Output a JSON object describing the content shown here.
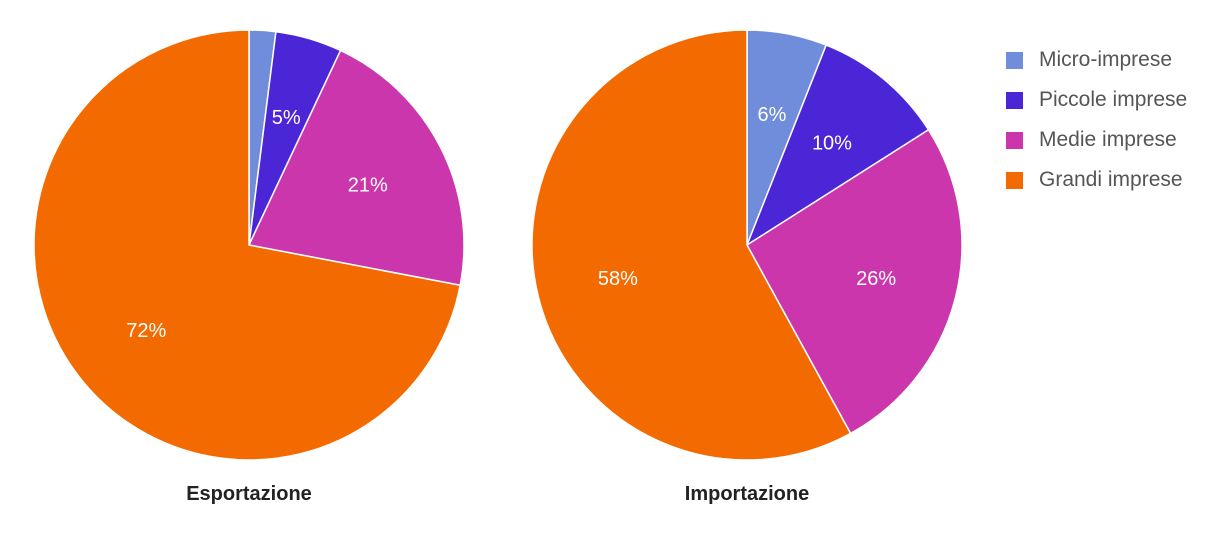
{
  "chart_data": [
    {
      "type": "pie",
      "title": "Esportazione",
      "categories": [
        "Micro-imprese",
        "Piccole imprese",
        "Medie imprese",
        "Grandi imprese"
      ],
      "values": [
        2,
        5,
        21,
        72
      ],
      "labels": [
        "",
        "5%",
        "21%",
        "72%"
      ]
    },
    {
      "type": "pie",
      "title": "Importazione",
      "categories": [
        "Micro-imprese",
        "Piccole imprese",
        "Medie imprese",
        "Grandi imprese"
      ],
      "values": [
        6,
        10,
        26,
        58
      ],
      "labels": [
        "6%",
        "10%",
        "26%",
        "58%"
      ]
    }
  ],
  "legend": {
    "placement": "top-right",
    "items": [
      {
        "label": "Micro-imprese",
        "color": "#6f8ddb"
      },
      {
        "label": "Piccole imprese",
        "color": "#4b26d6"
      },
      {
        "label": "Medie imprese",
        "color": "#cc36ad"
      },
      {
        "label": "Grandi imprese",
        "color": "#f26a00"
      }
    ]
  }
}
